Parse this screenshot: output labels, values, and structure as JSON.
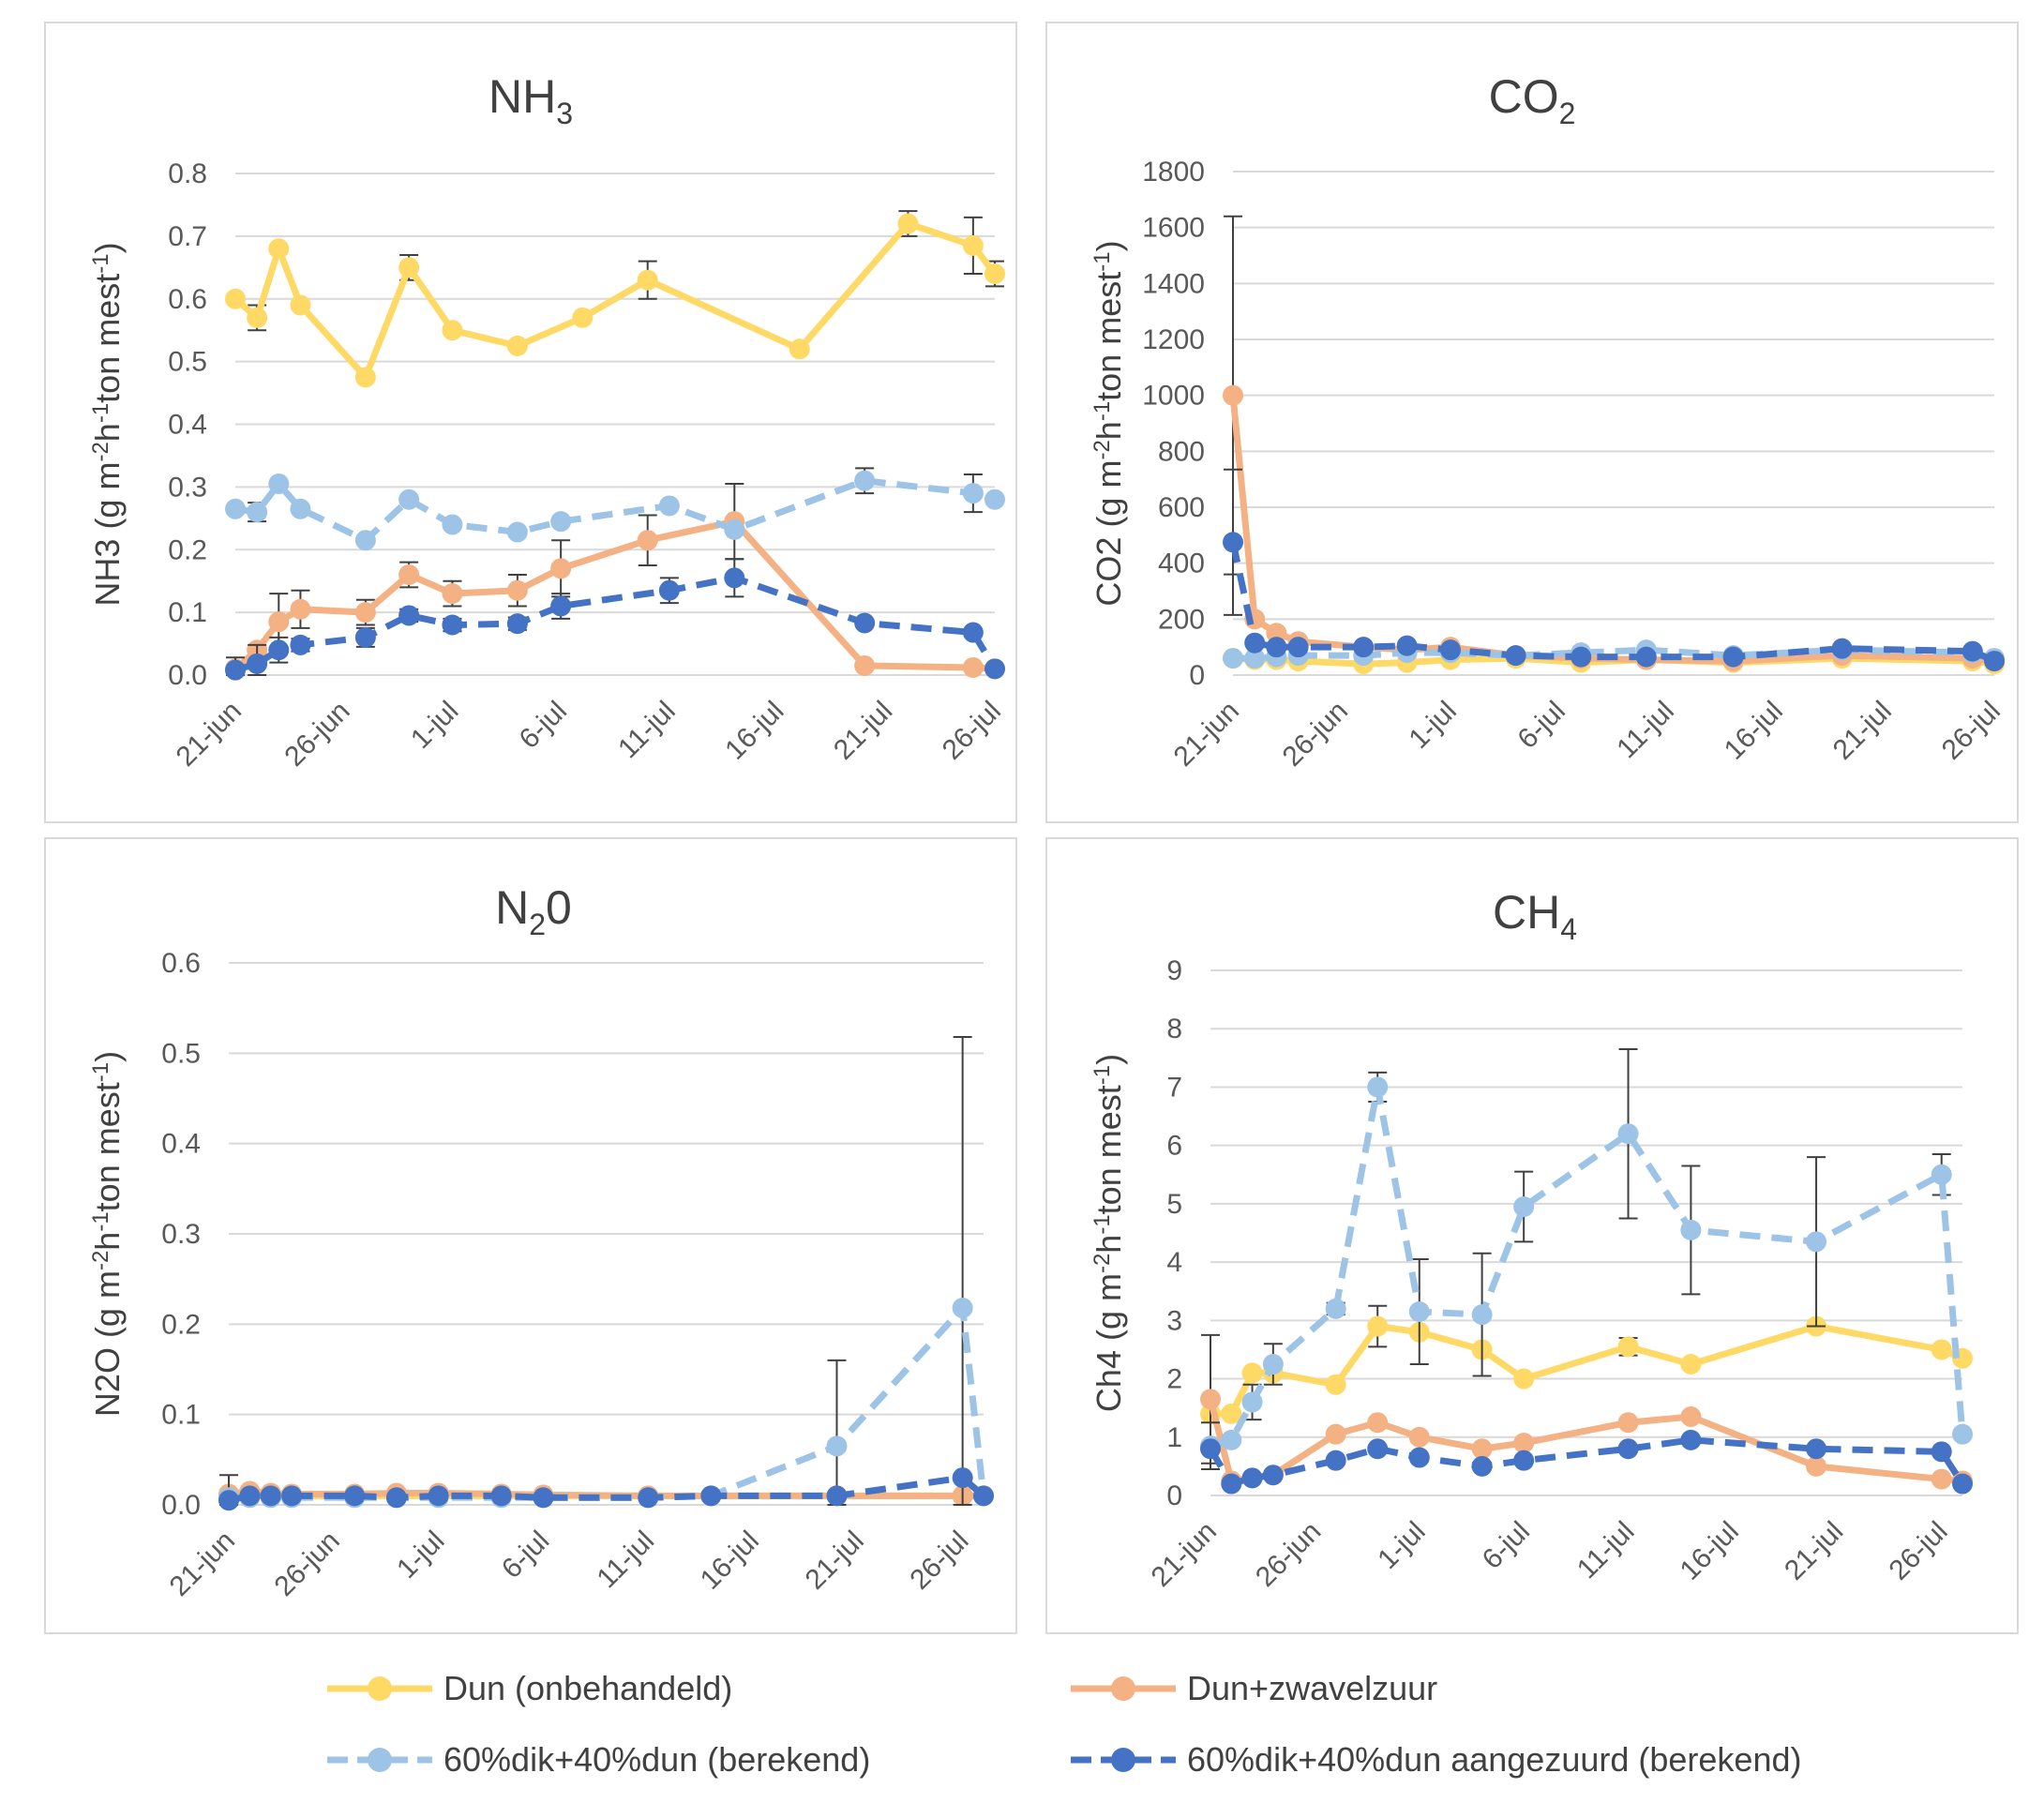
{
  "series_styles": [
    {
      "key": "dun",
      "name": "Dun (onbehandeld)",
      "color": "#FFD966",
      "dashed": false
    },
    {
      "key": "zwavel",
      "name": "Dun+zwavelzuur",
      "color": "#F4B183",
      "dashed": false
    },
    {
      "key": "dik",
      "name": "60%dik+40%dun (berekend)",
      "color": "#9DC3E6",
      "dashed": true
    },
    {
      "key": "aangezuurd",
      "name": "60%dik+40%dun aangezuurd (berekend)",
      "color": "#4472C4",
      "dashed": true
    }
  ],
  "x_ticks": [
    "21-jun",
    "26-jun",
    "1-jul",
    "6-jul",
    "11-jul",
    "16-jul",
    "21-jul",
    "26-jul"
  ],
  "chart_data": [
    {
      "type": "line",
      "title_main": "NH",
      "title_sub": "3",
      "ylabel_pre": "NH3 (g m",
      "ylabel_s1": "-2",
      "ylabel_mid": "h",
      "ylabel_s2": "-1",
      "ylabel_post": "ton mest",
      "ylabel_s3": "-1",
      "ylabel_end": ")",
      "ylim": [
        0,
        0.8
      ],
      "y_ticks": [
        "0.0",
        "0.1",
        "0.2",
        "0.3",
        "0.4",
        "0.5",
        "0.6",
        "0.7",
        "0.8"
      ],
      "xlim": [
        0,
        35
      ],
      "series": [
        {
          "key": "dun",
          "x": [
            0,
            1,
            2,
            3,
            6,
            8,
            10,
            13,
            16,
            19,
            26,
            31,
            34,
            35
          ],
          "y": [
            0.6,
            0.57,
            0.68,
            0.59,
            0.475,
            0.65,
            0.55,
            0.525,
            0.57,
            0.63,
            0.52,
            0.72,
            0.685,
            0.64
          ],
          "err": [
            0,
            0.02,
            0,
            0,
            0,
            0.02,
            0,
            0,
            0,
            0.03,
            0,
            0.02,
            0.045,
            0.02
          ]
        },
        {
          "key": "zwavel",
          "x": [
            0,
            1,
            2,
            3,
            6,
            8,
            10,
            13,
            15,
            19,
            23,
            29,
            34,
            35
          ],
          "y": [
            0.01,
            0.04,
            0.085,
            0.105,
            0.1,
            0.16,
            0.13,
            0.135,
            0.17,
            0.215,
            0.245,
            0.015,
            0.012,
            0.01
          ],
          "err": [
            0,
            0,
            0.045,
            0.03,
            0.02,
            0.02,
            0.02,
            0.025,
            0.045,
            0.04,
            0.06,
            0,
            0,
            0
          ]
        },
        {
          "key": "dik",
          "x": [
            0,
            1,
            2,
            3,
            6,
            8,
            10,
            13,
            15,
            20,
            23,
            29,
            34,
            35
          ],
          "y": [
            0.265,
            0.26,
            0.305,
            0.265,
            0.215,
            0.28,
            0.24,
            0.228,
            0.245,
            0.27,
            0.232,
            0.31,
            0.29,
            0.28
          ],
          "err": [
            0,
            0.015,
            0,
            0,
            0,
            0,
            0,
            0,
            0,
            0,
            0,
            0.02,
            0.03,
            0
          ]
        },
        {
          "key": "aangezuurd",
          "x": [
            0,
            1,
            2,
            3,
            6,
            8,
            10,
            13,
            15,
            20,
            23,
            29,
            34,
            35
          ],
          "y": [
            0.008,
            0.018,
            0.04,
            0.048,
            0.06,
            0.095,
            0.08,
            0.082,
            0.11,
            0.135,
            0.155,
            0.083,
            0.068,
            0.01
          ],
          "err": [
            0.02,
            0.03,
            0.02,
            0.01,
            0.015,
            0.01,
            0.01,
            0.01,
            0.02,
            0.02,
            0.03,
            0,
            0,
            0
          ]
        }
      ]
    },
    {
      "type": "line",
      "title_main": "CO",
      "title_sub": "2",
      "ylabel_pre": "CO2 (g m",
      "ylabel_s1": "-2",
      "ylabel_mid": "h",
      "ylabel_s2": "-1",
      "ylabel_post": "ton mest",
      "ylabel_s3": "-1",
      "ylabel_end": ")",
      "ylim": [
        0,
        1800
      ],
      "y_ticks": [
        "0",
        "200",
        "400",
        "600",
        "800",
        "1000",
        "1200",
        "1400",
        "1600",
        "1800"
      ],
      "xlim": [
        0,
        35
      ],
      "series": [
        {
          "key": "dun",
          "x": [
            0,
            1,
            2,
            3,
            6,
            8,
            10,
            13,
            16,
            19,
            23,
            28,
            34,
            35
          ],
          "y": [
            60,
            55,
            55,
            50,
            40,
            45,
            55,
            60,
            45,
            55,
            45,
            60,
            50,
            40
          ],
          "err": [
            0,
            0,
            0,
            0,
            0,
            0,
            0,
            0,
            0,
            0,
            0,
            0,
            0,
            0
          ]
        },
        {
          "key": "zwavel",
          "x": [
            0,
            1,
            2,
            3,
            6,
            8,
            10,
            13,
            16,
            19,
            23,
            28,
            34,
            35
          ],
          "y": [
            1000,
            200,
            150,
            120,
            100,
            90,
            100,
            70,
            60,
            55,
            50,
            70,
            60,
            50
          ],
          "err": [
            640,
            0,
            0,
            0,
            0,
            0,
            0,
            0,
            0,
            0,
            0,
            0,
            0,
            0
          ]
        },
        {
          "key": "dik",
          "x": [
            0,
            1,
            2,
            3,
            6,
            8,
            10,
            13,
            16,
            19,
            23,
            28,
            34,
            35
          ],
          "y": [
            60,
            60,
            65,
            70,
            70,
            80,
            80,
            70,
            80,
            90,
            70,
            90,
            80,
            60
          ],
          "err": [
            0,
            0,
            0,
            0,
            0,
            0,
            0,
            0,
            0,
            0,
            0,
            0,
            0,
            0
          ]
        },
        {
          "key": "aangezuurd",
          "x": [
            0,
            1,
            2,
            3,
            6,
            8,
            10,
            13,
            16,
            19,
            23,
            28,
            34,
            35
          ],
          "y": [
            475,
            115,
            100,
            100,
            100,
            105,
            90,
            70,
            65,
            65,
            65,
            95,
            85,
            50
          ],
          "err": [
            260,
            0,
            0,
            0,
            0,
            0,
            0,
            0,
            0,
            0,
            0,
            0,
            0,
            0
          ]
        }
      ]
    },
    {
      "type": "line",
      "title_main": "N",
      "title_sub": "2",
      "title_end": "0",
      "ylabel_pre": "N2O (g m",
      "ylabel_s1": "-2",
      "ylabel_mid": "h",
      "ylabel_s2": "-1",
      "ylabel_post": "ton mest",
      "ylabel_s3": "-1",
      "ylabel_end": ")",
      "ylim": [
        0,
        0.6
      ],
      "y_ticks": [
        "0.0",
        "0.1",
        "0.2",
        "0.3",
        "0.4",
        "0.5",
        "0.6"
      ],
      "xlim": [
        0,
        36
      ],
      "series": [
        {
          "key": "dun",
          "x": [
            0,
            1,
            2,
            3,
            6,
            8,
            10,
            13,
            15,
            20,
            23,
            29,
            35,
            36
          ],
          "y": [
            0.01,
            0.01,
            0.01,
            0.01,
            0.01,
            0.01,
            0.01,
            0.01,
            0.01,
            0.01,
            0.01,
            0.01,
            0.01,
            0.01
          ],
          "err": [
            0,
            0,
            0,
            0,
            0,
            0,
            0,
            0,
            0,
            0,
            0,
            0,
            0,
            0
          ]
        },
        {
          "key": "zwavel",
          "x": [
            0,
            1,
            2,
            3,
            6,
            8,
            10,
            13,
            15,
            20,
            23,
            29,
            35,
            36
          ],
          "y": [
            0.012,
            0.015,
            0.013,
            0.012,
            0.012,
            0.013,
            0.013,
            0.012,
            0.011,
            0.01,
            0.01,
            0.01,
            0.01,
            0.01
          ],
          "err": [
            0,
            0,
            0,
            0,
            0,
            0,
            0,
            0,
            0,
            0,
            0,
            0,
            0,
            0
          ]
        },
        {
          "key": "dik",
          "x": [
            0,
            1,
            2,
            3,
            6,
            8,
            10,
            13,
            15,
            20,
            23,
            29,
            35,
            36
          ],
          "y": [
            0.008,
            0.008,
            0.008,
            0.008,
            0.008,
            0.008,
            0.008,
            0.008,
            0.008,
            0.008,
            0.01,
            0.065,
            0.218,
            0.01
          ],
          "err": [
            0.025,
            0,
            0,
            0,
            0,
            0,
            0,
            0,
            0,
            0,
            0,
            0.095,
            0.3,
            0
          ]
        },
        {
          "key": "aangezuurd",
          "x": [
            0,
            1,
            2,
            3,
            6,
            8,
            10,
            13,
            15,
            20,
            23,
            29,
            35,
            36
          ],
          "y": [
            0.005,
            0.01,
            0.01,
            0.01,
            0.01,
            0.008,
            0.01,
            0.01,
            0.008,
            0.008,
            0.01,
            0.01,
            0.03,
            0.01
          ],
          "err": [
            0,
            0,
            0,
            0,
            0,
            0,
            0,
            0,
            0,
            0,
            0,
            0,
            0,
            0
          ]
        }
      ]
    },
    {
      "type": "line",
      "title_main": "CH",
      "title_sub": "4",
      "ylabel_pre": "Ch4 (g m",
      "ylabel_s1": "-2",
      "ylabel_mid": "h",
      "ylabel_s2": "-1",
      "ylabel_post": "ton mest",
      "ylabel_s3": "-1",
      "ylabel_end": ")",
      "ylim": [
        0,
        9
      ],
      "y_ticks": [
        "0",
        "1",
        "2",
        "3",
        "4",
        "5",
        "6",
        "7",
        "8",
        "9"
      ],
      "xlim": [
        0,
        36
      ],
      "series": [
        {
          "key": "dun",
          "x": [
            0,
            1,
            2,
            3,
            6,
            8,
            10,
            13,
            15,
            20,
            23,
            29,
            35,
            36
          ],
          "y": [
            1.4,
            1.4,
            2.1,
            2.1,
            1.9,
            2.9,
            2.8,
            2.5,
            2.0,
            2.55,
            2.25,
            2.9,
            2.5,
            2.35
          ],
          "err": [
            0,
            0,
            0,
            0,
            0,
            0.35,
            0,
            0,
            0,
            0.15,
            0,
            0,
            0,
            0
          ]
        },
        {
          "key": "zwavel",
          "x": [
            0,
            1,
            2,
            3,
            6,
            8,
            10,
            13,
            15,
            20,
            23,
            29,
            35,
            36
          ],
          "y": [
            1.65,
            0.25,
            0.3,
            0.35,
            1.05,
            1.25,
            1.0,
            0.8,
            0.9,
            1.25,
            1.35,
            0.5,
            0.28,
            0.25
          ],
          "err": [
            1.1,
            0,
            0,
            0,
            0,
            0,
            0,
            0,
            0,
            0,
            0,
            0,
            0,
            0
          ]
        },
        {
          "key": "dik",
          "x": [
            0,
            1,
            2,
            3,
            6,
            8,
            10,
            13,
            15,
            20,
            23,
            29,
            35,
            36
          ],
          "y": [
            0.85,
            0.95,
            1.6,
            2.25,
            3.2,
            7.0,
            3.15,
            3.1,
            4.95,
            6.2,
            4.55,
            4.35,
            5.5,
            1.05
          ],
          "err": [
            0.4,
            0,
            0.3,
            0.35,
            0.1,
            0.25,
            0.9,
            1.05,
            0.6,
            1.45,
            1.1,
            1.45,
            0.35,
            0
          ]
        },
        {
          "key": "aangezuurd",
          "x": [
            0,
            1,
            2,
            3,
            6,
            8,
            10,
            13,
            15,
            20,
            23,
            29,
            35,
            36
          ],
          "y": [
            0.8,
            0.2,
            0.3,
            0.35,
            0.6,
            0.8,
            0.65,
            0.5,
            0.6,
            0.8,
            0.95,
            0.8,
            0.75,
            0.2
          ],
          "err": [
            0,
            0,
            0,
            0,
            0,
            0,
            0,
            0,
            0,
            0,
            0,
            0,
            0,
            0
          ]
        }
      ]
    }
  ]
}
